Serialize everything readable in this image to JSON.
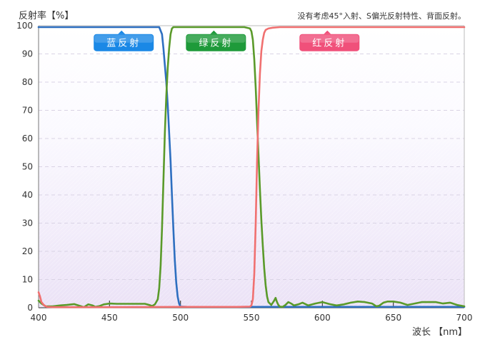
{
  "chart_data": {
    "type": "line",
    "ylabel": "反射率【%】",
    "xlabel": "波长 【nm】",
    "annotation": "没有考虑45°入射、S偏光反射特性、背面反射。",
    "xlim": [
      400,
      700
    ],
    "ylim": [
      0,
      100
    ],
    "xticks": [
      400,
      450,
      500,
      550,
      600,
      650,
      700
    ],
    "yticks": [
      0,
      10,
      20,
      30,
      40,
      50,
      60,
      70,
      80,
      90,
      100
    ],
    "grid": true,
    "series": [
      {
        "name": "蓝反射",
        "color": "#2e6fc0",
        "tag_color": "#1a88e6",
        "tag_x": 460,
        "tag_y": 94,
        "points": [
          [
            400,
            99.5
          ],
          [
            420,
            99.5
          ],
          [
            440,
            99.5
          ],
          [
            460,
            99.5
          ],
          [
            480,
            99.5
          ],
          [
            485,
            99.5
          ],
          [
            487,
            97
          ],
          [
            488,
            92
          ],
          [
            489,
            86
          ],
          [
            490,
            80
          ],
          [
            491,
            72
          ],
          [
            492,
            62
          ],
          [
            493,
            52
          ],
          [
            494,
            40
          ],
          [
            495,
            28
          ],
          [
            496,
            17
          ],
          [
            497,
            9
          ],
          [
            498,
            4
          ],
          [
            499,
            1.5
          ],
          [
            500,
            0.4
          ],
          [
            505,
            0.3
          ],
          [
            550,
            0.3
          ],
          [
            600,
            0.3
          ],
          [
            650,
            0.3
          ],
          [
            700,
            0.3
          ]
        ]
      },
      {
        "name": "绿反射",
        "color": "#5a9a2a",
        "tag_color": "#1e9a3a",
        "tag_x": 525,
        "tag_y": 94,
        "points": [
          [
            400,
            2.5
          ],
          [
            402,
            1.5
          ],
          [
            405,
            0.5
          ],
          [
            410,
            0.5
          ],
          [
            415,
            0.8
          ],
          [
            420,
            1
          ],
          [
            425,
            1.3
          ],
          [
            430,
            0.5
          ],
          [
            432,
            0.2
          ],
          [
            435,
            1.2
          ],
          [
            438,
            0.8
          ],
          [
            440,
            0.3
          ],
          [
            443,
            0.6
          ],
          [
            446,
            1.2
          ],
          [
            450,
            1.5
          ],
          [
            455,
            1.4
          ],
          [
            460,
            1.4
          ],
          [
            470,
            1.4
          ],
          [
            475,
            1.4
          ],
          [
            478,
            1.0
          ],
          [
            480,
            0.6
          ],
          [
            482,
            1.2
          ],
          [
            484,
            3
          ],
          [
            485,
            7
          ],
          [
            486,
            15
          ],
          [
            487,
            28
          ],
          [
            488,
            45
          ],
          [
            489,
            62
          ],
          [
            490,
            75
          ],
          [
            491,
            85
          ],
          [
            492,
            92
          ],
          [
            493,
            97
          ],
          [
            494,
            99
          ],
          [
            495,
            99.5
          ],
          [
            500,
            99.5
          ],
          [
            510,
            99.5
          ],
          [
            530,
            99.5
          ],
          [
            545,
            99.5
          ],
          [
            549,
            99
          ],
          [
            550,
            98
          ],
          [
            551,
            95
          ],
          [
            552,
            88
          ],
          [
            553,
            78
          ],
          [
            554,
            66
          ],
          [
            555,
            54
          ],
          [
            556,
            42
          ],
          [
            557,
            31
          ],
          [
            558,
            22
          ],
          [
            559,
            14
          ],
          [
            560,
            8
          ],
          [
            561,
            4
          ],
          [
            562,
            2
          ],
          [
            563,
            1.5
          ],
          [
            564,
            1
          ],
          [
            566,
            2.5
          ],
          [
            567,
            3.5
          ],
          [
            568,
            2
          ],
          [
            569,
            1
          ],
          [
            570,
            0.4
          ],
          [
            572,
            0.3
          ],
          [
            574,
            1
          ],
          [
            576,
            2
          ],
          [
            578,
            1.5
          ],
          [
            580,
            0.8
          ],
          [
            583,
            1.2
          ],
          [
            586,
            1.8
          ],
          [
            590,
            0.8
          ],
          [
            595,
            1.5
          ],
          [
            600,
            2
          ],
          [
            605,
            1.3
          ],
          [
            610,
            0.8
          ],
          [
            615,
            1.2
          ],
          [
            620,
            1.8
          ],
          [
            625,
            2.2
          ],
          [
            630,
            2
          ],
          [
            635,
            1.5
          ],
          [
            638,
            0.5
          ],
          [
            640,
            0.7
          ],
          [
            643,
            1.8
          ],
          [
            646,
            2.2
          ],
          [
            650,
            2.2
          ],
          [
            655,
            1.8
          ],
          [
            660,
            1
          ],
          [
            665,
            1.5
          ],
          [
            670,
            2
          ],
          [
            675,
            2
          ],
          [
            680,
            2
          ],
          [
            685,
            1.5
          ],
          [
            690,
            1.8
          ],
          [
            695,
            1
          ],
          [
            700,
            0.5
          ]
        ]
      },
      {
        "name": "红反射",
        "color": "#f07070",
        "tag_color": "#f0507a",
        "tag_x": 605,
        "tag_y": 94,
        "points": [
          [
            400,
            5.5
          ],
          [
            401,
            4
          ],
          [
            402,
            2
          ],
          [
            404,
            0.8
          ],
          [
            406,
            0.3
          ],
          [
            410,
            0.2
          ],
          [
            450,
            0.2
          ],
          [
            500,
            0.3
          ],
          [
            540,
            0.3
          ],
          [
            549,
            0.4
          ],
          [
            550,
            0.8
          ],
          [
            551,
            3
          ],
          [
            552,
            12
          ],
          [
            553,
            30
          ],
          [
            554,
            52
          ],
          [
            555,
            70
          ],
          [
            556,
            83
          ],
          [
            557,
            91
          ],
          [
            558,
            95
          ],
          [
            559,
            97.5
          ],
          [
            560,
            98.5
          ],
          [
            562,
            99
          ],
          [
            565,
            99.3
          ],
          [
            570,
            99.5
          ],
          [
            600,
            99.5
          ],
          [
            650,
            99.5
          ],
          [
            700,
            99.5
          ]
        ]
      }
    ]
  }
}
